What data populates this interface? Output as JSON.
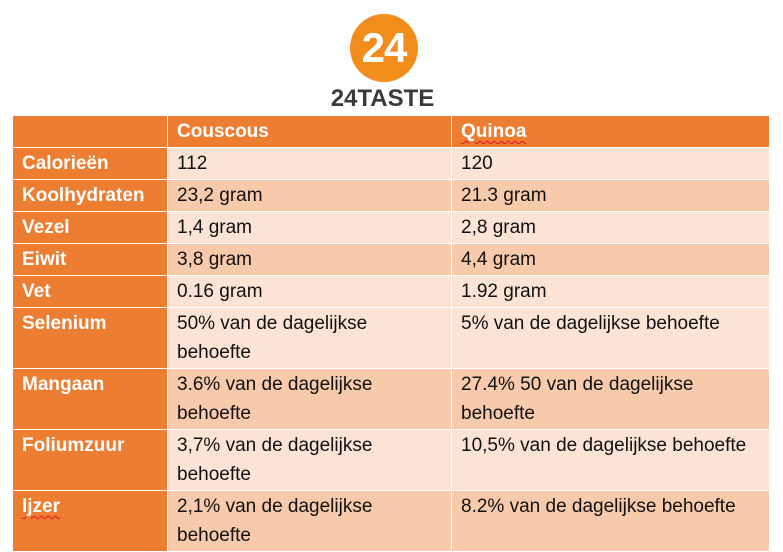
{
  "logo": {
    "number": "24",
    "name": "24TASTE"
  },
  "colors": {
    "header": "#ed7d31",
    "row_light": "#fbe4d5",
    "row_dark": "#f7caac",
    "logo_orange": "#f28c1a"
  },
  "table": {
    "columns": [
      "",
      "Couscous",
      "Quinoa"
    ],
    "rows": [
      {
        "label": "Calorieën",
        "couscous": "112",
        "quinoa": "120"
      },
      {
        "label": "Koolhydraten",
        "couscous": "23,2 gram",
        "quinoa": "21.3 gram"
      },
      {
        "label": "Vezel",
        "couscous": "1,4 gram",
        "quinoa": "2,8 gram"
      },
      {
        "label": "Eiwit",
        "couscous": "3,8 gram",
        "quinoa": "4,4 gram"
      },
      {
        "label": "Vet",
        "couscous": "0.16 gram",
        "quinoa": "1.92 gram"
      },
      {
        "label": "Selenium",
        "couscous": "50% van de dagelijkse behoefte",
        "quinoa": "5% van de dagelijkse behoefte"
      },
      {
        "label": "Mangaan",
        "couscous": "3.6% van de dagelijkse behoefte",
        "quinoa": "27.4% 50 van de dagelijkse behoefte"
      },
      {
        "label": "Foliumzuur",
        "couscous": "3,7% van de dagelijkse behoefte",
        "quinoa": "10,5% van de dagelijkse behoefte"
      },
      {
        "label": "Ijzer",
        "couscous": "2,1% van de dagelijkse behoefte",
        "quinoa": "8.2% van de dagelijkse behoefte"
      }
    ]
  }
}
